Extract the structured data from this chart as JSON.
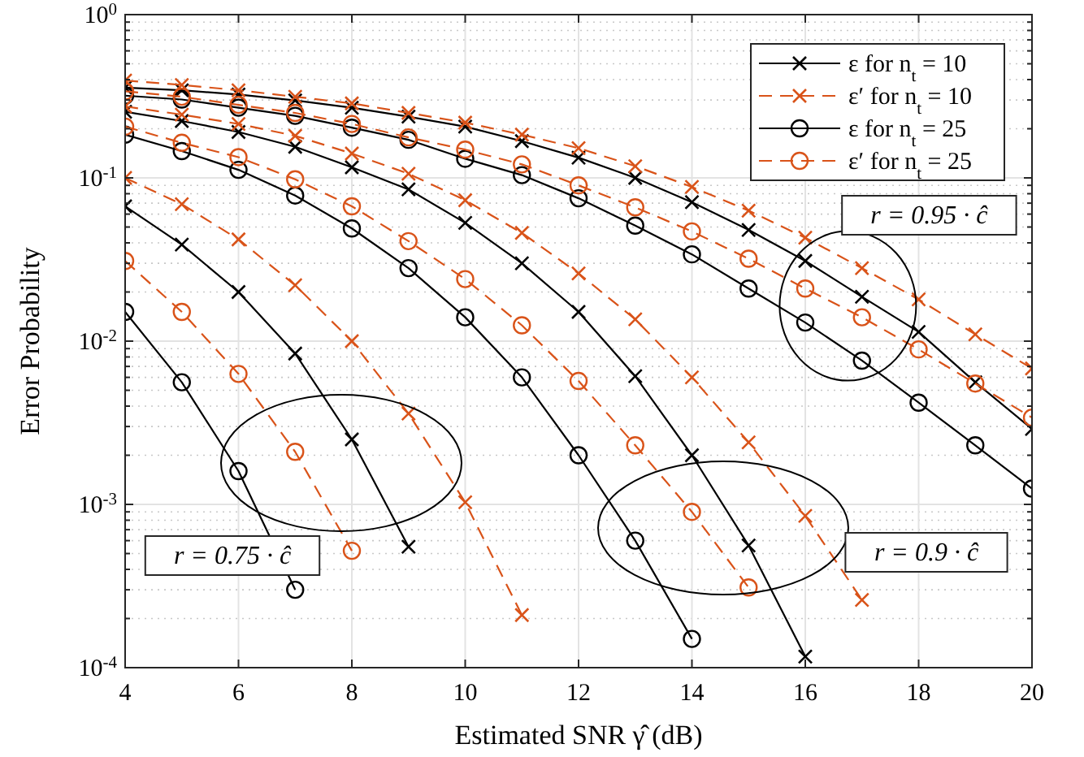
{
  "chart_data": {
    "type": "line",
    "xlabel": "Estimated SNR γ̂ (dB)",
    "ylabel": "Error Probability",
    "x": [
      4,
      5,
      6,
      7,
      8,
      9,
      10,
      11,
      12,
      13,
      14,
      15,
      16,
      17,
      18,
      19,
      20
    ],
    "xlim": [
      4,
      20
    ],
    "xticks": [
      4,
      6,
      8,
      10,
      12,
      14,
      16,
      18,
      20
    ],
    "ylim": [
      0.0001,
      1
    ],
    "log": "y",
    "yticks": [
      {
        "value": 0.0001,
        "label": "10$^{-4}$"
      },
      {
        "value": 0.001,
        "label": "10$^{-3}$"
      },
      {
        "value": 0.01,
        "label": "10$^{-2}$"
      },
      {
        "value": 0.1,
        "label": "10$^{-1}$"
      },
      {
        "value": 1,
        "label": "10$^{0}$"
      }
    ],
    "grid": true,
    "legend": "top right",
    "series": [
      {
        "name": "ε for n$_{t}$ = 10",
        "color": "#000000",
        "marker": "cross",
        "line_style": "solid",
        "values": [
          0.357,
          0.344,
          0.324,
          0.298,
          0.269,
          0.237,
          0.206,
          0.168,
          0.133,
          0.1,
          0.071,
          0.048,
          0.031,
          0.0187,
          0.0114,
          0.0056,
          0.0029
        ]
      },
      {
        "name": "ε′ for n$_{t}$ = 10",
        "color": "#d95319",
        "marker": "cross",
        "line_style": "dashed",
        "values": [
          0.395,
          0.371,
          0.344,
          0.314,
          0.286,
          0.25,
          0.218,
          0.184,
          0.152,
          0.118,
          0.088,
          0.063,
          0.043,
          0.028,
          0.018,
          0.011,
          0.0068
        ]
      },
      {
        "name": "ε for n$_{t}$ = 25",
        "color": "#000000",
        "marker": "circle",
        "line_style": "solid",
        "values": [
          0.319,
          0.302,
          0.269,
          0.24,
          0.203,
          0.171,
          0.131,
          0.104,
          0.075,
          0.051,
          0.034,
          0.021,
          0.013,
          0.0076,
          0.0042,
          0.0023,
          0.00125
        ]
      },
      {
        "name": "ε′ for n$_{t}$ = 25",
        "color": "#d95319",
        "marker": "circle",
        "line_style": "dashed",
        "values": [
          0.339,
          0.314,
          0.28,
          0.25,
          0.214,
          0.177,
          0.149,
          0.121,
          0.09,
          0.066,
          0.047,
          0.032,
          0.021,
          0.014,
          0.0089,
          0.0055,
          0.0034
        ]
      },
      {
        "color": "#000000",
        "marker": "cross",
        "line_style": "solid",
        "values": [
          0.254,
          0.223,
          0.191,
          0.155,
          0.116,
          0.085,
          0.053,
          0.03,
          0.0151,
          0.0061,
          0.002,
          0.00056,
          0.000117,
          null,
          null,
          null,
          null
        ]
      },
      {
        "color": "#d95319",
        "marker": "cross",
        "line_style": "dashed",
        "values": [
          0.274,
          0.244,
          0.214,
          0.181,
          0.141,
          0.106,
          0.073,
          0.046,
          0.026,
          0.0136,
          0.006,
          0.0024,
          0.00085,
          0.00026,
          null,
          null,
          null
        ]
      },
      {
        "color": "#000000",
        "marker": "circle",
        "line_style": "solid",
        "values": [
          0.184,
          0.146,
          0.112,
          0.078,
          0.049,
          0.028,
          0.014,
          0.006,
          0.002,
          0.0006,
          0.00015,
          null,
          null,
          null,
          null,
          null,
          null
        ]
      },
      {
        "color": "#d95319",
        "marker": "circle",
        "line_style": "dashed",
        "values": [
          0.206,
          0.164,
          0.134,
          0.098,
          0.067,
          0.041,
          0.024,
          0.0125,
          0.0057,
          0.0023,
          0.0009,
          0.00031,
          null,
          null,
          null,
          null,
          null
        ]
      },
      {
        "color": "#000000",
        "marker": "cross",
        "line_style": "solid",
        "values": [
          0.067,
          0.039,
          0.02,
          0.0084,
          0.0025,
          0.00055,
          null,
          null,
          null,
          null,
          null,
          null,
          null,
          null,
          null,
          null,
          null
        ]
      },
      {
        "color": "#d95319",
        "marker": "cross",
        "line_style": "dashed",
        "values": [
          0.1,
          0.069,
          0.042,
          0.022,
          0.01,
          0.0036,
          0.00103,
          0.00021,
          null,
          null,
          null,
          null,
          null,
          null,
          null,
          null,
          null
        ]
      },
      {
        "color": "#000000",
        "marker": "circle",
        "line_style": "solid",
        "values": [
          0.0151,
          0.0056,
          0.0016,
          0.0003,
          null,
          null,
          null,
          null,
          null,
          null,
          null,
          null,
          null,
          null,
          null,
          null,
          null
        ]
      },
      {
        "color": "#d95319",
        "marker": "circle",
        "line_style": "dashed",
        "values": [
          0.031,
          0.0151,
          0.0063,
          0.0021,
          0.00052,
          null,
          null,
          null,
          null,
          null,
          null,
          null,
          null,
          null,
          null,
          null,
          null
        ]
      }
    ],
    "annotations": [
      "r = 0.95 · ĉ",
      "r = 0.75 · ĉ",
      "r = 0.9 · ĉ"
    ]
  }
}
